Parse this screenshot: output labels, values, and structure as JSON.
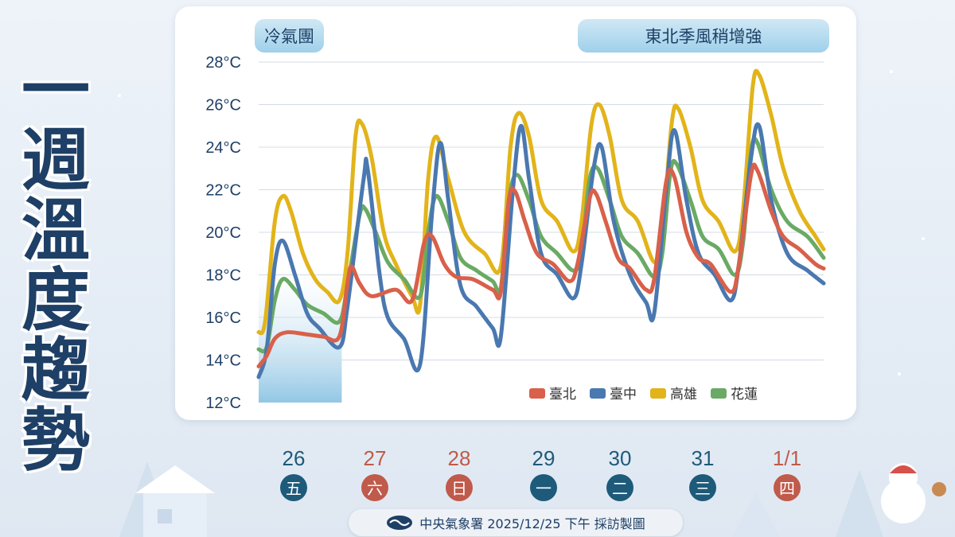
{
  "title_chars": [
    "一",
    "週",
    "溫",
    "度",
    "趨",
    "勢"
  ],
  "labels": {
    "cold_air": "冷氣團",
    "monsoon": "東北季風稍增強"
  },
  "days": [
    {
      "date": "26",
      "weekday": "五",
      "weekend": false
    },
    {
      "date": "27",
      "weekday": "六",
      "weekend": true
    },
    {
      "date": "28",
      "weekday": "日",
      "weekend": true
    },
    {
      "date": "29",
      "weekday": "一",
      "weekend": false
    },
    {
      "date": "30",
      "weekday": "二",
      "weekend": false
    },
    {
      "date": "31",
      "weekday": "三",
      "weekend": false
    },
    {
      "date": "1/1",
      "weekday": "四",
      "weekend": true
    }
  ],
  "footer": {
    "text": "中央氣象署 2025/12/25 下午 採訪製圖"
  },
  "colors": {
    "weekday": "#1e5a7a",
    "weekend": "#c05a4a",
    "accent": "#1e3f66"
  },
  "chart_data": {
    "type": "line",
    "ylim": [
      12,
      28
    ],
    "y_ticks": [
      "12°C",
      "14°C",
      "16°C",
      "18°C",
      "20°C",
      "22°C",
      "24°C",
      "26°C",
      "28°C"
    ],
    "x_range": [
      0,
      7
    ],
    "series": [
      {
        "name": "臺北",
        "color": "#d9604a",
        "points": [
          [
            0,
            13.7
          ],
          [
            0.1,
            14.2
          ],
          [
            0.2,
            15
          ],
          [
            0.35,
            15.3
          ],
          [
            0.6,
            15.2
          ],
          [
            0.8,
            15.1
          ],
          [
            1.0,
            15.1
          ],
          [
            1.1,
            17.6
          ],
          [
            1.15,
            18.4
          ],
          [
            1.25,
            17.6
          ],
          [
            1.4,
            17.0
          ],
          [
            1.7,
            17.3
          ],
          [
            1.9,
            16.8
          ],
          [
            2.05,
            19.5
          ],
          [
            2.15,
            19.8
          ],
          [
            2.3,
            18.5
          ],
          [
            2.45,
            17.9
          ],
          [
            2.65,
            17.8
          ],
          [
            2.9,
            17.3
          ],
          [
            3.0,
            17.2
          ],
          [
            3.1,
            21.5
          ],
          [
            3.18,
            21.9
          ],
          [
            3.3,
            20.5
          ],
          [
            3.45,
            19.0
          ],
          [
            3.65,
            18.5
          ],
          [
            3.85,
            17.7
          ],
          [
            3.95,
            18.5
          ],
          [
            4.1,
            21.6
          ],
          [
            4.18,
            21.8
          ],
          [
            4.3,
            20.5
          ],
          [
            4.45,
            18.8
          ],
          [
            4.6,
            18.3
          ],
          [
            4.8,
            17.3
          ],
          [
            4.9,
            17.8
          ],
          [
            5.05,
            22.4
          ],
          [
            5.15,
            22.6
          ],
          [
            5.3,
            20.0
          ],
          [
            5.45,
            18.8
          ],
          [
            5.6,
            18.5
          ],
          [
            5.85,
            17.2
          ],
          [
            5.95,
            18.5
          ],
          [
            6.1,
            22.7
          ],
          [
            6.18,
            22.9
          ],
          [
            6.35,
            21.0
          ],
          [
            6.5,
            19.8
          ],
          [
            6.7,
            19.2
          ],
          [
            6.9,
            18.5
          ],
          [
            7.0,
            18.3
          ]
        ]
      },
      {
        "name": "臺中",
        "color": "#4a78b0",
        "points": [
          [
            0,
            13.2
          ],
          [
            0.1,
            14.5
          ],
          [
            0.2,
            18.5
          ],
          [
            0.3,
            19.6
          ],
          [
            0.45,
            18.0
          ],
          [
            0.6,
            16.2
          ],
          [
            0.75,
            15.5
          ],
          [
            1.0,
            14.6
          ],
          [
            1.1,
            16.5
          ],
          [
            1.3,
            22.5
          ],
          [
            1.35,
            23.0
          ],
          [
            1.5,
            18.0
          ],
          [
            1.6,
            16.0
          ],
          [
            1.8,
            15.0
          ],
          [
            2.0,
            13.8
          ],
          [
            2.15,
            21.0
          ],
          [
            2.25,
            24.2
          ],
          [
            2.35,
            21.5
          ],
          [
            2.5,
            17.5
          ],
          [
            2.7,
            16.5
          ],
          [
            2.9,
            15.5
          ],
          [
            3.0,
            15.1
          ],
          [
            3.15,
            22.0
          ],
          [
            3.25,
            25.0
          ],
          [
            3.35,
            22.5
          ],
          [
            3.5,
            19.0
          ],
          [
            3.7,
            18.0
          ],
          [
            3.9,
            16.9
          ],
          [
            4.0,
            18.5
          ],
          [
            4.15,
            23.0
          ],
          [
            4.25,
            24.0
          ],
          [
            4.4,
            20.5
          ],
          [
            4.6,
            18.0
          ],
          [
            4.8,
            16.7
          ],
          [
            4.9,
            16.2
          ],
          [
            5.05,
            22.0
          ],
          [
            5.15,
            24.8
          ],
          [
            5.3,
            21.5
          ],
          [
            5.45,
            19.0
          ],
          [
            5.65,
            18.0
          ],
          [
            5.85,
            16.8
          ],
          [
            5.95,
            18.5
          ],
          [
            6.1,
            23.5
          ],
          [
            6.2,
            25.0
          ],
          [
            6.35,
            21.5
          ],
          [
            6.55,
            19.0
          ],
          [
            6.8,
            18.2
          ],
          [
            7.0,
            17.6
          ]
        ]
      },
      {
        "name": "高雄",
        "color": "#e2b41a",
        "points": [
          [
            0,
            15.3
          ],
          [
            0.08,
            15.8
          ],
          [
            0.2,
            20.5
          ],
          [
            0.3,
            21.7
          ],
          [
            0.4,
            21.0
          ],
          [
            0.55,
            19.0
          ],
          [
            0.7,
            17.8
          ],
          [
            0.85,
            17.2
          ],
          [
            1.0,
            16.8
          ],
          [
            1.1,
            19.0
          ],
          [
            1.2,
            24.5
          ],
          [
            1.28,
            25.1
          ],
          [
            1.4,
            23.5
          ],
          [
            1.55,
            20.0
          ],
          [
            1.7,
            18.5
          ],
          [
            1.9,
            17.0
          ],
          [
            2.0,
            16.6
          ],
          [
            2.1,
            22.5
          ],
          [
            2.2,
            24.5
          ],
          [
            2.35,
            22.5
          ],
          [
            2.55,
            20.0
          ],
          [
            2.8,
            19.0
          ],
          [
            3.0,
            18.4
          ],
          [
            3.12,
            24.0
          ],
          [
            3.22,
            25.6
          ],
          [
            3.35,
            24.5
          ],
          [
            3.5,
            21.5
          ],
          [
            3.7,
            20.5
          ],
          [
            3.9,
            19.1
          ],
          [
            4.0,
            20.5
          ],
          [
            4.12,
            25.0
          ],
          [
            4.22,
            26.0
          ],
          [
            4.35,
            24.5
          ],
          [
            4.5,
            21.5
          ],
          [
            4.7,
            20.5
          ],
          [
            4.9,
            18.6
          ],
          [
            5.0,
            20.0
          ],
          [
            5.12,
            25.2
          ],
          [
            5.2,
            25.8
          ],
          [
            5.35,
            24.0
          ],
          [
            5.5,
            21.5
          ],
          [
            5.7,
            20.5
          ],
          [
            5.9,
            19.1
          ],
          [
            6.0,
            21.0
          ],
          [
            6.12,
            26.8
          ],
          [
            6.2,
            27.4
          ],
          [
            6.35,
            25.5
          ],
          [
            6.5,
            23.0
          ],
          [
            6.7,
            21.0
          ],
          [
            6.9,
            19.8
          ],
          [
            7.0,
            19.2
          ]
        ]
      },
      {
        "name": "花蓮",
        "color": "#6aaa64",
        "points": [
          [
            0,
            14.5
          ],
          [
            0.1,
            14.6
          ],
          [
            0.2,
            16.8
          ],
          [
            0.3,
            17.8
          ],
          [
            0.45,
            17.3
          ],
          [
            0.6,
            16.6
          ],
          [
            0.8,
            16.2
          ],
          [
            1.0,
            15.8
          ],
          [
            1.1,
            17.5
          ],
          [
            1.25,
            20.8
          ],
          [
            1.32,
            21.1
          ],
          [
            1.45,
            20.0
          ],
          [
            1.6,
            18.6
          ],
          [
            1.8,
            17.8
          ],
          [
            2.0,
            17.0
          ],
          [
            2.1,
            20.0
          ],
          [
            2.2,
            21.7
          ],
          [
            2.35,
            20.5
          ],
          [
            2.5,
            18.8
          ],
          [
            2.7,
            18.2
          ],
          [
            2.9,
            17.7
          ],
          [
            3.0,
            17.4
          ],
          [
            3.1,
            21.5
          ],
          [
            3.2,
            22.7
          ],
          [
            3.35,
            21.5
          ],
          [
            3.5,
            19.8
          ],
          [
            3.7,
            19.0
          ],
          [
            3.9,
            18.2
          ],
          [
            4.0,
            19.0
          ],
          [
            4.1,
            22.5
          ],
          [
            4.2,
            23.0
          ],
          [
            4.35,
            21.5
          ],
          [
            4.5,
            19.8
          ],
          [
            4.7,
            19.0
          ],
          [
            4.9,
            17.9
          ],
          [
            5.0,
            19.0
          ],
          [
            5.1,
            22.8
          ],
          [
            5.18,
            23.2
          ],
          [
            5.35,
            21.5
          ],
          [
            5.5,
            19.8
          ],
          [
            5.7,
            19.2
          ],
          [
            5.9,
            18.0
          ],
          [
            6.0,
            19.5
          ],
          [
            6.1,
            23.8
          ],
          [
            6.18,
            24.2
          ],
          [
            6.35,
            22.0
          ],
          [
            6.55,
            20.5
          ],
          [
            6.8,
            19.8
          ],
          [
            7.0,
            18.8
          ]
        ]
      }
    ]
  }
}
